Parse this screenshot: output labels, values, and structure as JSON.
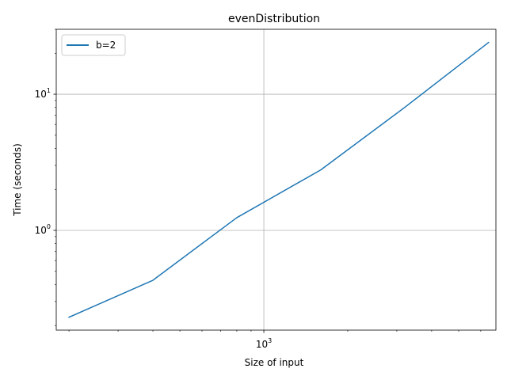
{
  "chart_data": {
    "type": "line",
    "title": "evenDistribution",
    "xlabel": "Size of input",
    "ylabel": "Time (seconds)",
    "xscale": "log",
    "yscale": "log",
    "xlim": [
      180,
      6800
    ],
    "ylim": [
      0.185,
      30
    ],
    "grid": true,
    "legend": "top-left",
    "x_ticks": [
      {
        "base": "10",
        "exp": "3",
        "value": 1000
      }
    ],
    "y_ticks": [
      {
        "base": "10",
        "exp": "0",
        "value": 1
      },
      {
        "base": "10",
        "exp": "1",
        "value": 10
      }
    ],
    "series": [
      {
        "name": "b=2",
        "color": "#1f77b4",
        "x": [
          200,
          400,
          800,
          1600,
          3200,
          6400
        ],
        "y": [
          0.23,
          0.43,
          1.24,
          2.78,
          8.0,
          24.0
        ]
      }
    ]
  }
}
